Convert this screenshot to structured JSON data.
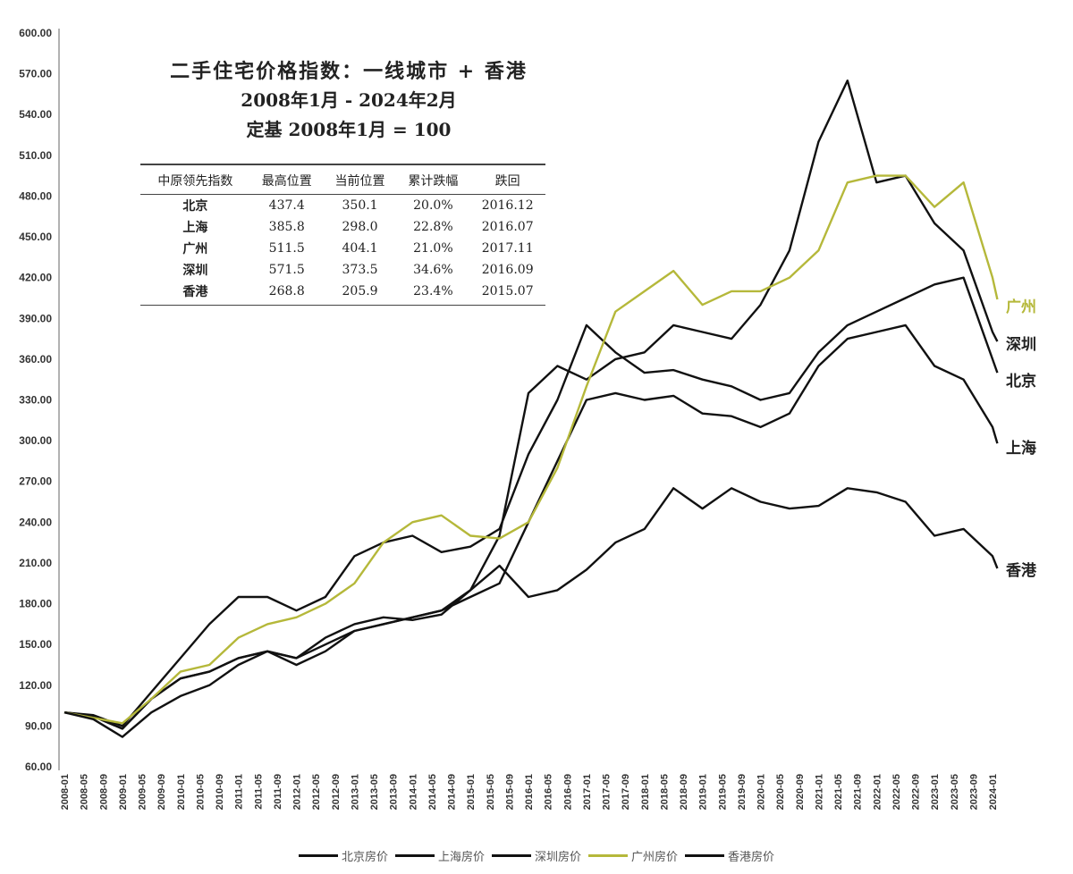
{
  "chart_data": {
    "type": "line",
    "title": "二手住宅价格指数：一线城市 + 香港",
    "subtitle": "2008年1月 - 2024年2月",
    "subtitle2": "定基 2008年1月 = 100",
    "xlabel": "",
    "ylabel": "",
    "ylim": [
      60,
      600
    ],
    "y_ticks": [
      "600.00",
      "570.00",
      "540.00",
      "510.00",
      "480.00",
      "450.00",
      "420.00",
      "390.00",
      "360.00",
      "330.00",
      "300.00",
      "270.00",
      "240.00",
      "210.00",
      "180.00",
      "150.00",
      "120.00",
      "90.00",
      "60.00"
    ],
    "x_ticks": [
      "2008-01",
      "2008-05",
      "2008-09",
      "2009-01",
      "2009-05",
      "2009-09",
      "2010-01",
      "2010-05",
      "2010-09",
      "2011-01",
      "2011-05",
      "2011-09",
      "2012-01",
      "2012-05",
      "2012-09",
      "2013-01",
      "2013-05",
      "2013-09",
      "2014-01",
      "2014-05",
      "2014-09",
      "2015-01",
      "2015-05",
      "2015-09",
      "2016-01",
      "2016-05",
      "2016-09",
      "2017-01",
      "2017-05",
      "2017-09",
      "2018-01",
      "2018-05",
      "2018-09",
      "2019-01",
      "2019-05",
      "2019-09",
      "2020-01",
      "2020-05",
      "2020-09",
      "2021-01",
      "2021-05",
      "2021-09",
      "2022-01",
      "2022-05",
      "2022-09",
      "2023-01",
      "2023-05",
      "2023-09",
      "2024-01"
    ],
    "x": [
      "2008-01",
      "2008-07",
      "2009-01",
      "2009-07",
      "2010-01",
      "2010-07",
      "2011-01",
      "2011-07",
      "2012-01",
      "2012-07",
      "2013-01",
      "2013-07",
      "2014-01",
      "2014-07",
      "2015-01",
      "2015-07",
      "2016-01",
      "2016-07",
      "2017-01",
      "2017-07",
      "2018-01",
      "2018-07",
      "2019-01",
      "2019-07",
      "2020-01",
      "2020-07",
      "2021-01",
      "2021-07",
      "2022-01",
      "2022-07",
      "2023-01",
      "2023-07",
      "2024-01",
      "2024-02"
    ],
    "series": [
      {
        "name": "北京房价",
        "end_label": "北京",
        "color": "#111111",
        "values": [
          100,
          98,
          90,
          115,
          140,
          165,
          185,
          185,
          175,
          185,
          215,
          225,
          230,
          218,
          222,
          235,
          290,
          330,
          385,
          365,
          350,
          352,
          345,
          340,
          330,
          335,
          365,
          385,
          395,
          405,
          415,
          420,
          360,
          350
        ]
      },
      {
        "name": "上海房价",
        "end_label": "上海",
        "color": "#111111",
        "values": [
          100,
          97,
          88,
          110,
          125,
          130,
          140,
          145,
          135,
          145,
          160,
          165,
          170,
          175,
          185,
          195,
          240,
          285,
          330,
          335,
          330,
          333,
          320,
          318,
          310,
          320,
          355,
          375,
          380,
          385,
          355,
          345,
          310,
          298
        ]
      },
      {
        "name": "深圳房价",
        "end_label": "深圳",
        "color": "#111111",
        "values": [
          100,
          97,
          88,
          110,
          125,
          130,
          140,
          145,
          140,
          150,
          160,
          165,
          170,
          175,
          190,
          230,
          335,
          355,
          345,
          360,
          365,
          385,
          380,
          375,
          400,
          440,
          520,
          565,
          490,
          495,
          460,
          440,
          380,
          373
        ]
      },
      {
        "name": "广州房价",
        "end_label": "广州",
        "color": "#b5b83a",
        "values": [
          100,
          96,
          92,
          110,
          130,
          135,
          155,
          165,
          170,
          180,
          195,
          225,
          240,
          245,
          230,
          228,
          240,
          280,
          340,
          395,
          410,
          425,
          400,
          410,
          410,
          420,
          440,
          490,
          495,
          495,
          472,
          490,
          420,
          404
        ]
      },
      {
        "name": "香港房价",
        "end_label": "香港",
        "color": "#111111",
        "values": [
          100,
          95,
          82,
          100,
          112,
          120,
          135,
          145,
          140,
          155,
          165,
          170,
          168,
          172,
          190,
          208,
          185,
          190,
          205,
          225,
          235,
          265,
          250,
          265,
          255,
          250,
          252,
          265,
          262,
          255,
          230,
          235,
          215,
          206
        ]
      }
    ],
    "legend_position": "bottom",
    "grid": false
  },
  "summary_table": {
    "headers": [
      "中原领先指数",
      "最高位置",
      "当前位置",
      "累计跌幅",
      "跌回"
    ],
    "rows": [
      [
        "北京",
        "437.4",
        "350.1",
        "20.0%",
        "2016.12"
      ],
      [
        "上海",
        "385.8",
        "298.0",
        "22.8%",
        "2016.07"
      ],
      [
        "广州",
        "511.5",
        "404.1",
        "21.0%",
        "2017.11"
      ],
      [
        "深圳",
        "571.5",
        "373.5",
        "34.6%",
        "2016.09"
      ],
      [
        "香港",
        "268.8",
        "205.9",
        "23.4%",
        "2015.07"
      ]
    ]
  }
}
